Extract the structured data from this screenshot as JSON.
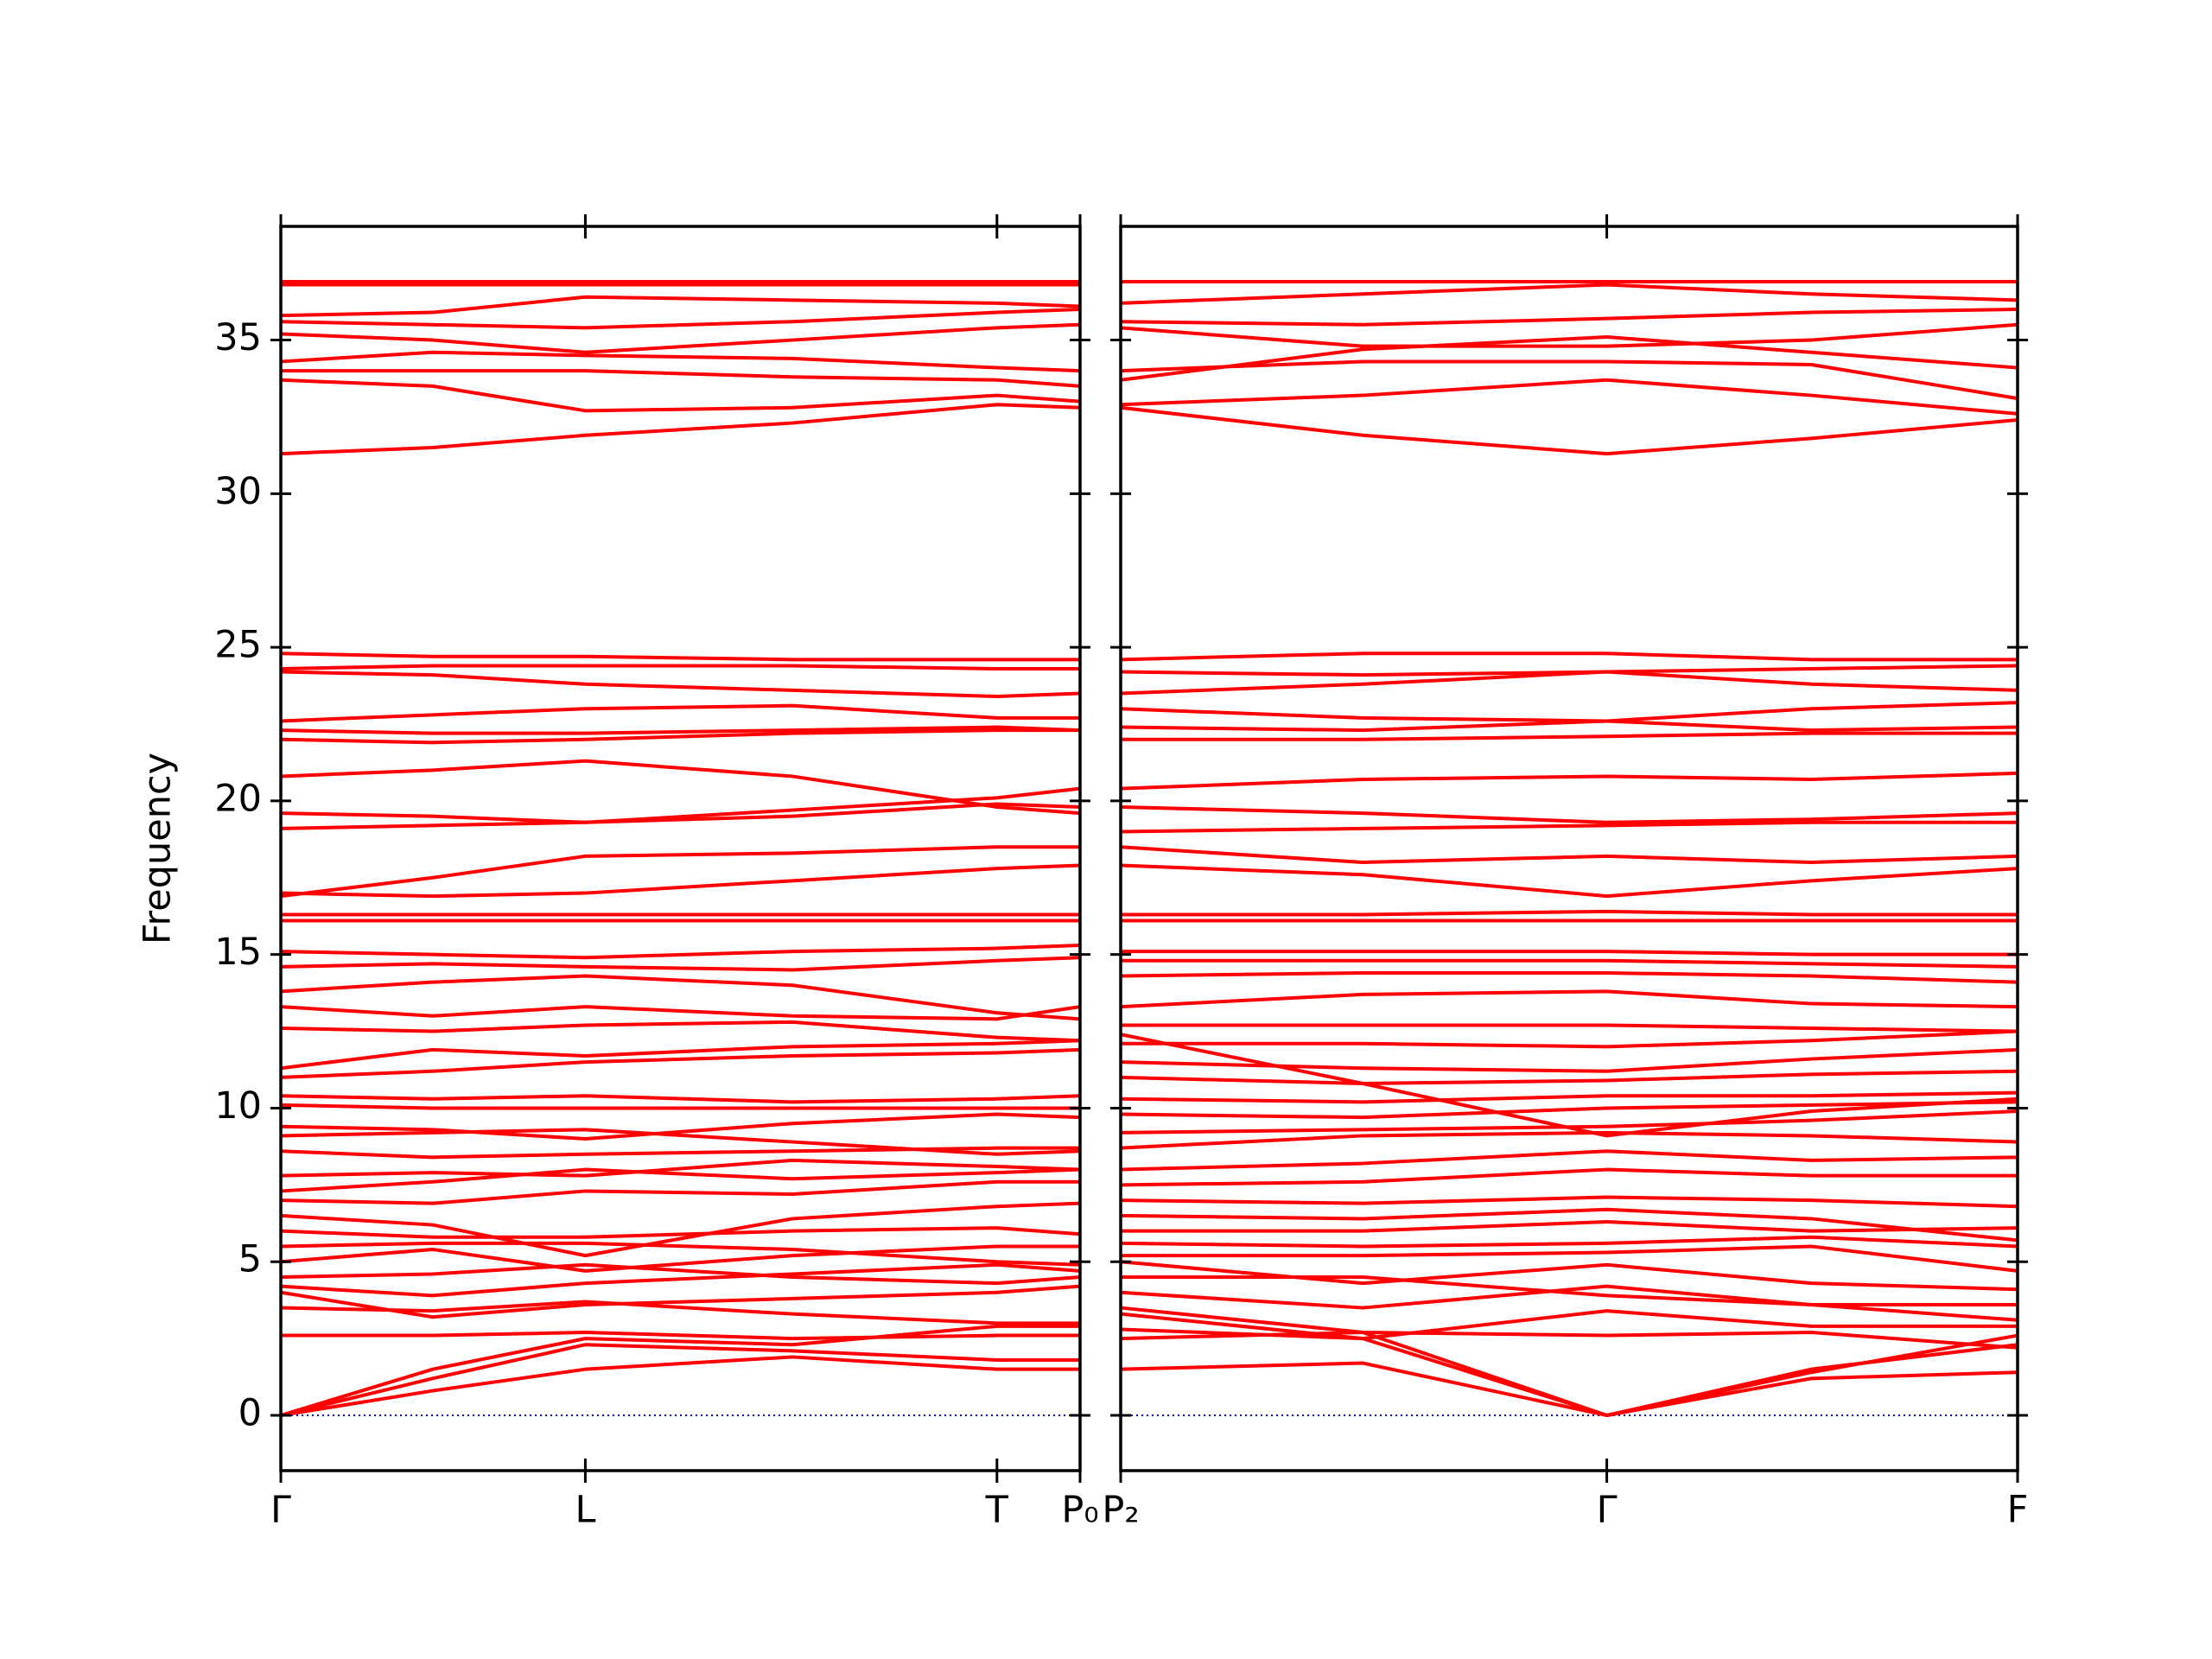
{
  "chart_data": [
    {
      "type": "line",
      "y_label": "Frequency",
      "color": "#ff0000",
      "x": [
        0,
        0.19,
        0.381,
        0.64,
        0.896,
        1.0
      ],
      "xlim": [
        0,
        1.0
      ],
      "xticks": [
        {
          "value": 0,
          "label": "Γ"
        },
        {
          "value": 0.381,
          "label": "L"
        },
        {
          "value": 0.896,
          "label": "T"
        },
        {
          "value": 1.0,
          "label": "P₀"
        }
      ],
      "ylim": [
        -1.8,
        38.7
      ],
      "yticks": [
        0,
        5,
        10,
        15,
        20,
        25,
        30,
        35
      ],
      "ytick_labels": true,
      "zero_line": {
        "value": 0,
        "color": "#0000cc"
      },
      "series": [
        {
          "values": [
            0,
            1.5,
            2.5,
            2.3,
            2.9,
            2.9
          ]
        },
        {
          "values": [
            0,
            0.8,
            1.5,
            1.9,
            1.5,
            1.5
          ]
        },
        {
          "values": [
            0,
            1.2,
            2.3,
            2.1,
            1.8,
            1.8
          ]
        },
        {
          "values": [
            2.6,
            2.6,
            2.7,
            2.5,
            2.6,
            2.6
          ]
        },
        {
          "values": [
            3.5,
            3.4,
            3.7,
            3.3,
            3.0,
            3.0
          ]
        },
        {
          "values": [
            4.0,
            3.2,
            3.6,
            3.8,
            4.0,
            4.2
          ]
        },
        {
          "values": [
            4.2,
            3.9,
            4.3,
            4.6,
            4.9,
            4.7
          ]
        },
        {
          "values": [
            4.5,
            4.6,
            4.9,
            4.5,
            4.3,
            4.5
          ]
        },
        {
          "values": [
            5.0,
            5.4,
            4.7,
            5.2,
            5.5,
            5.5
          ]
        },
        {
          "values": [
            5.5,
            5.6,
            5.6,
            5.4,
            5.0,
            4.9
          ]
        },
        {
          "values": [
            6.0,
            5.8,
            5.8,
            6.0,
            6.1,
            5.9
          ]
        },
        {
          "values": [
            6.5,
            6.2,
            5.2,
            6.4,
            6.8,
            6.9
          ]
        },
        {
          "values": [
            7.0,
            6.9,
            7.3,
            7.2,
            7.6,
            7.6
          ]
        },
        {
          "values": [
            7.3,
            7.6,
            8.0,
            7.7,
            7.9,
            8.0
          ]
        },
        {
          "values": [
            7.8,
            7.9,
            7.8,
            8.3,
            8.1,
            8.0
          ]
        },
        {
          "values": [
            8.6,
            8.4,
            8.5,
            8.6,
            8.7,
            8.7
          ]
        },
        {
          "values": [
            9.1,
            9.2,
            9.3,
            8.9,
            8.5,
            8.6
          ]
        },
        {
          "values": [
            9.4,
            9.3,
            9.0,
            9.5,
            9.8,
            9.7
          ]
        },
        {
          "values": [
            10.1,
            10.0,
            10.0,
            10.0,
            10.0,
            10.0
          ]
        },
        {
          "values": [
            10.4,
            10.3,
            10.4,
            10.2,
            10.3,
            10.4
          ]
        },
        {
          "values": [
            11.0,
            11.2,
            11.5,
            11.7,
            11.8,
            11.9
          ]
        },
        {
          "values": [
            11.3,
            11.9,
            11.7,
            12.0,
            12.1,
            12.2
          ]
        },
        {
          "values": [
            12.6,
            12.5,
            12.7,
            12.8,
            12.3,
            12.2
          ]
        },
        {
          "values": [
            13.3,
            13.0,
            13.3,
            13.0,
            12.9,
            13.3
          ]
        },
        {
          "values": [
            13.8,
            14.1,
            14.3,
            14.0,
            13.1,
            12.9
          ]
        },
        {
          "values": [
            14.6,
            14.7,
            14.6,
            14.5,
            14.8,
            14.9
          ]
        },
        {
          "values": [
            15.1,
            15.0,
            14.9,
            15.1,
            15.2,
            15.3
          ]
        },
        {
          "values": [
            16.1,
            16.1,
            16.1,
            16.1,
            16.1,
            16.1
          ]
        },
        {
          "values": [
            16.3,
            16.3,
            16.3,
            16.3,
            16.3,
            16.3
          ]
        },
        {
          "values": [
            16.9,
            17.5,
            18.2,
            18.3,
            18.5,
            18.5
          ]
        },
        {
          "values": [
            17.0,
            16.9,
            17.0,
            17.4,
            17.8,
            17.9
          ]
        },
        {
          "values": [
            19.1,
            19.2,
            19.3,
            19.5,
            19.9,
            19.8
          ]
        },
        {
          "values": [
            19.6,
            19.5,
            19.3,
            19.7,
            20.1,
            20.4
          ]
        },
        {
          "values": [
            20.8,
            21.0,
            21.3,
            20.8,
            19.8,
            19.6
          ]
        },
        {
          "values": [
            22.0,
            21.9,
            22.0,
            22.2,
            22.3,
            22.3
          ]
        },
        {
          "values": [
            22.3,
            22.2,
            22.2,
            22.3,
            22.4,
            22.3
          ]
        },
        {
          "values": [
            22.6,
            22.8,
            23.0,
            23.1,
            22.7,
            22.7
          ]
        },
        {
          "values": [
            24.2,
            24.1,
            23.8,
            23.6,
            23.4,
            23.5
          ]
        },
        {
          "values": [
            24.3,
            24.4,
            24.4,
            24.4,
            24.3,
            24.3
          ]
        },
        {
          "values": [
            24.8,
            24.7,
            24.7,
            24.6,
            24.6,
            24.6
          ]
        },
        {
          "values": [
            31.3,
            31.5,
            31.9,
            32.3,
            32.9,
            32.8
          ]
        },
        {
          "values": [
            33.7,
            33.5,
            32.7,
            32.8,
            33.2,
            33.0
          ]
        },
        {
          "values": [
            34.0,
            34.0,
            34.0,
            33.8,
            33.7,
            33.5
          ]
        },
        {
          "values": [
            34.3,
            34.6,
            34.5,
            34.4,
            34.1,
            34.0
          ]
        },
        {
          "values": [
            35.2,
            35.0,
            34.6,
            35.0,
            35.4,
            35.5
          ]
        },
        {
          "values": [
            35.6,
            35.5,
            35.4,
            35.6,
            35.9,
            36.0
          ]
        },
        {
          "values": [
            35.8,
            35.9,
            36.4,
            36.3,
            36.2,
            36.1
          ]
        },
        {
          "values": [
            36.9,
            36.9,
            36.9,
            36.9,
            36.9,
            36.9
          ]
        },
        {
          "values": [
            36.8,
            36.8,
            36.8,
            36.8,
            36.8,
            36.8
          ]
        }
      ]
    },
    {
      "type": "line",
      "color": "#ff0000",
      "x": [
        0,
        0.27,
        0.542,
        0.77,
        1.0
      ],
      "xlim": [
        0,
        1.0
      ],
      "xticks": [
        {
          "value": 0,
          "label": "P₂"
        },
        {
          "value": 0.542,
          "label": "Γ"
        },
        {
          "value": 1.0,
          "label": "F"
        }
      ],
      "ylim": [
        -1.8,
        38.7
      ],
      "yticks": [
        0,
        5,
        10,
        15,
        20,
        25,
        30,
        35
      ],
      "ytick_labels": false,
      "zero_line": {
        "value": 0,
        "color": "#0000cc"
      },
      "series": [
        {
          "values": [
            1.5,
            1.7,
            0,
            1.5,
            2.3
          ]
        },
        {
          "values": [
            2.8,
            2.5,
            0,
            1.2,
            1.4
          ]
        },
        {
          "values": [
            2.5,
            2.7,
            0,
            1.4,
            2.6
          ]
        },
        {
          "values": [
            3.3,
            2.5,
            3.4,
            2.9,
            2.9
          ]
        },
        {
          "values": [
            3.5,
            2.7,
            2.6,
            2.7,
            2.2
          ]
        },
        {
          "values": [
            4.0,
            3.5,
            4.2,
            3.6,
            3.1
          ]
        },
        {
          "values": [
            4.5,
            4.5,
            3.9,
            3.6,
            3.6
          ]
        },
        {
          "values": [
            5.0,
            4.3,
            4.9,
            4.3,
            4.1
          ]
        },
        {
          "values": [
            5.2,
            5.2,
            5.3,
            5.5,
            4.7
          ]
        },
        {
          "values": [
            5.6,
            5.5,
            5.6,
            5.8,
            5.5
          ]
        },
        {
          "values": [
            6.0,
            6.0,
            6.3,
            6.0,
            6.1
          ]
        },
        {
          "values": [
            6.5,
            6.4,
            6.7,
            6.4,
            5.7
          ]
        },
        {
          "values": [
            7.0,
            6.9,
            7.1,
            7.0,
            6.8
          ]
        },
        {
          "values": [
            7.5,
            7.6,
            8.0,
            7.8,
            7.8
          ]
        },
        {
          "values": [
            8.0,
            8.2,
            8.6,
            8.3,
            8.4
          ]
        },
        {
          "values": [
            8.7,
            9.1,
            9.2,
            9.1,
            8.9
          ]
        },
        {
          "values": [
            9.2,
            9.3,
            9.4,
            9.6,
            9.9
          ]
        },
        {
          "values": [
            9.8,
            9.7,
            10.0,
            10.1,
            10.2
          ]
        },
        {
          "values": [
            10.3,
            10.2,
            10.4,
            10.4,
            10.5
          ]
        },
        {
          "values": [
            11.0,
            10.8,
            10.9,
            11.1,
            11.2
          ]
        },
        {
          "values": [
            11.5,
            11.3,
            11.2,
            11.6,
            11.9
          ]
        },
        {
          "values": [
            12.4,
            10.8,
            9.1,
            9.9,
            10.3
          ]
        },
        {
          "values": [
            12.1,
            12.1,
            12.0,
            12.2,
            12.5
          ]
        },
        {
          "values": [
            12.7,
            12.7,
            12.7,
            12.6,
            12.5
          ]
        },
        {
          "values": [
            13.3,
            13.7,
            13.8,
            13.4,
            13.3
          ]
        },
        {
          "values": [
            14.3,
            14.4,
            14.4,
            14.3,
            14.1
          ]
        },
        {
          "values": [
            14.8,
            14.8,
            14.8,
            14.7,
            14.6
          ]
        },
        {
          "values": [
            15.1,
            15.1,
            15.1,
            15.0,
            15.0
          ]
        },
        {
          "values": [
            16.1,
            16.1,
            16.1,
            16.1,
            16.1
          ]
        },
        {
          "values": [
            16.3,
            16.3,
            16.4,
            16.3,
            16.3
          ]
        },
        {
          "values": [
            17.9,
            17.6,
            16.9,
            17.4,
            17.8
          ]
        },
        {
          "values": [
            18.5,
            18.0,
            18.2,
            18.0,
            18.2
          ]
        },
        {
          "values": [
            19.0,
            19.1,
            19.2,
            19.3,
            19.3
          ]
        },
        {
          "values": [
            19.8,
            19.6,
            19.3,
            19.4,
            19.6
          ]
        },
        {
          "values": [
            20.4,
            20.7,
            20.8,
            20.7,
            20.9
          ]
        },
        {
          "values": [
            22.0,
            22.0,
            22.1,
            22.2,
            22.2
          ]
        },
        {
          "values": [
            22.4,
            22.3,
            22.6,
            22.3,
            22.4
          ]
        },
        {
          "values": [
            23.0,
            22.7,
            22.6,
            23.0,
            23.2
          ]
        },
        {
          "values": [
            23.5,
            23.8,
            24.2,
            23.8,
            23.6
          ]
        },
        {
          "values": [
            24.2,
            24.1,
            24.2,
            24.3,
            24.4
          ]
        },
        {
          "values": [
            24.6,
            24.8,
            24.8,
            24.6,
            24.6
          ]
        },
        {
          "values": [
            32.8,
            31.9,
            31.3,
            31.8,
            32.4
          ]
        },
        {
          "values": [
            32.9,
            33.2,
            33.7,
            33.2,
            32.6
          ]
        },
        {
          "values": [
            34.0,
            34.3,
            34.3,
            34.2,
            33.1
          ]
        },
        {
          "values": [
            33.7,
            34.7,
            35.1,
            34.6,
            34.1
          ]
        },
        {
          "values": [
            35.4,
            34.8,
            34.8,
            35.0,
            35.5
          ]
        },
        {
          "values": [
            35.6,
            35.5,
            35.7,
            35.9,
            36.0
          ]
        },
        {
          "values": [
            36.2,
            36.5,
            36.8,
            36.5,
            36.3
          ]
        },
        {
          "values": [
            36.9,
            36.9,
            36.9,
            36.9,
            36.9
          ]
        }
      ]
    }
  ]
}
